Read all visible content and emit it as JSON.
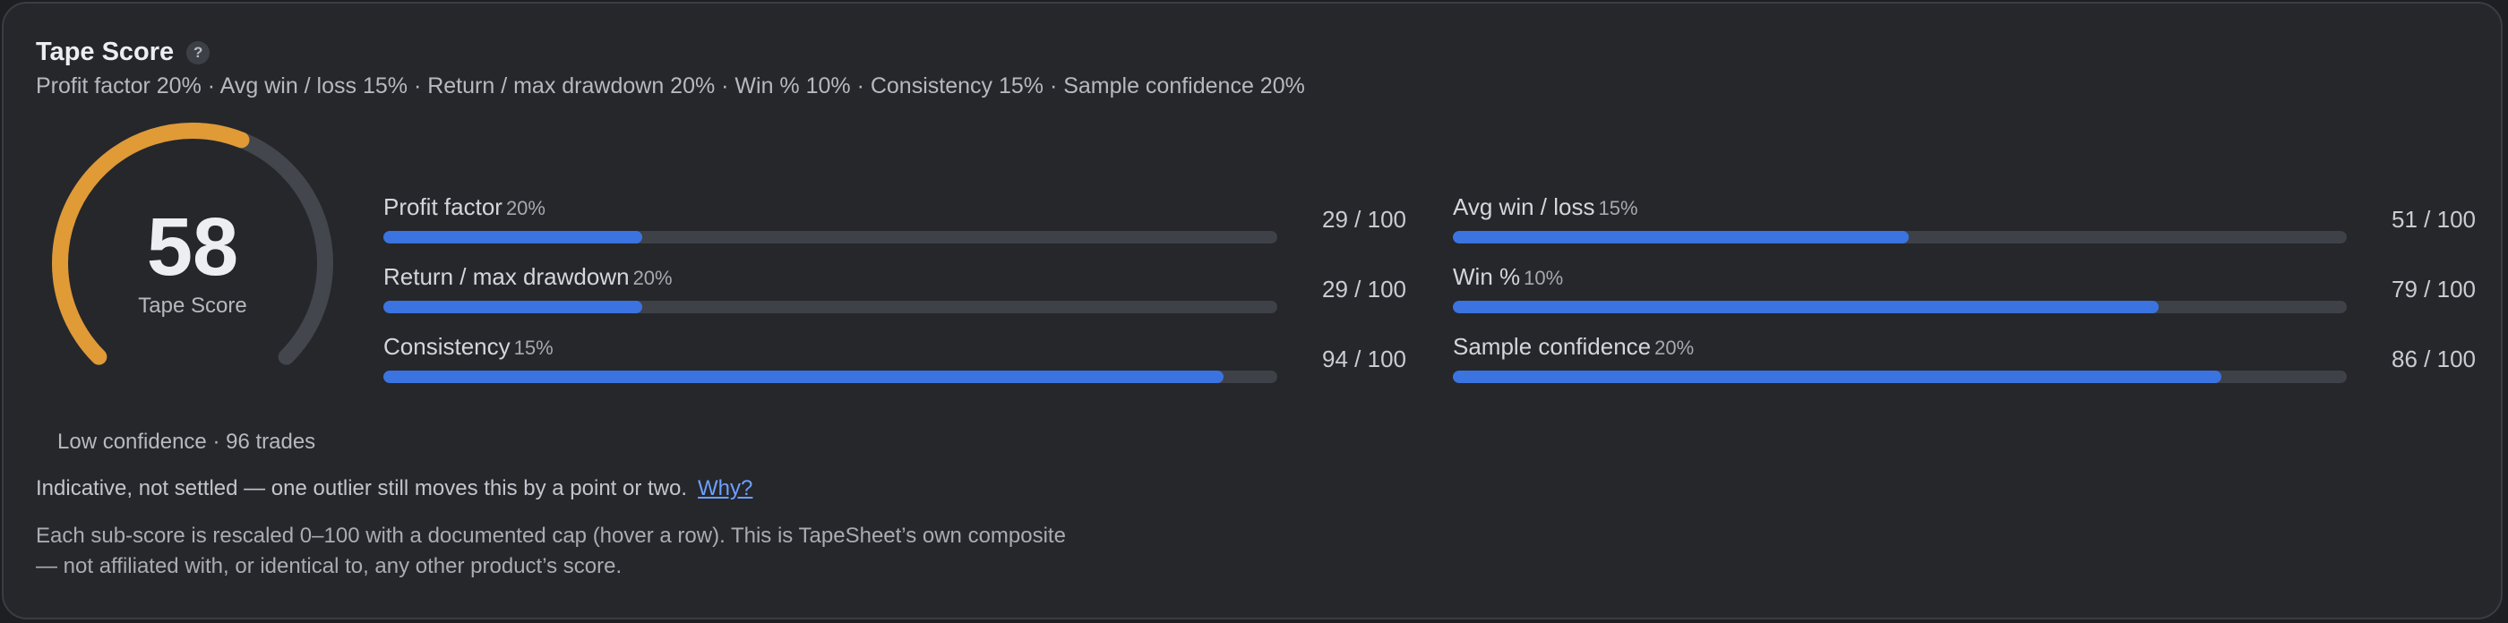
{
  "card": {
    "title": "Tape Score",
    "help_icon": "question-icon",
    "help_glyph": "?",
    "subtitle": "Profit factor 20% · Avg win / loss 15% · Return / max drawdown 20% · Win % 10% · Consistency 15% · Sample confidence 20%"
  },
  "gauge": {
    "value": "58",
    "score": 58,
    "max": 100,
    "label": "Tape Score",
    "colors": {
      "fill": "#e09a36",
      "track": "#43464c"
    }
  },
  "metrics": [
    {
      "label": "Profit factor",
      "weight": "20%",
      "score_text": "29 / 100",
      "score": 29
    },
    {
      "label": "Avg win / loss",
      "weight": "15%",
      "score_text": "51 / 100",
      "score": 51
    },
    {
      "label": "Return / max drawdown",
      "weight": "20%",
      "score_text": "29 / 100",
      "score": 29
    },
    {
      "label": "Win %",
      "weight": "10%",
      "score_text": "79 / 100",
      "score": 79
    },
    {
      "label": "Consistency",
      "weight": "15%",
      "score_text": "94 / 100",
      "score": 94
    },
    {
      "label": "Sample confidence",
      "weight": "20%",
      "score_text": "86 / 100",
      "score": 86
    }
  ],
  "bar_color": "#3b73e0",
  "confidence": "Low confidence · 96 trades",
  "indicative": {
    "text": "Indicative, not settled — one outlier still moves this by a point or two.",
    "link": "Why?"
  },
  "footnote": {
    "line1": "Each sub-score is rescaled 0–100 with a documented cap (hover a row). This is TapeSheet’s own composite",
    "line2": "— not affiliated with, or identical to, any other product’s score."
  }
}
